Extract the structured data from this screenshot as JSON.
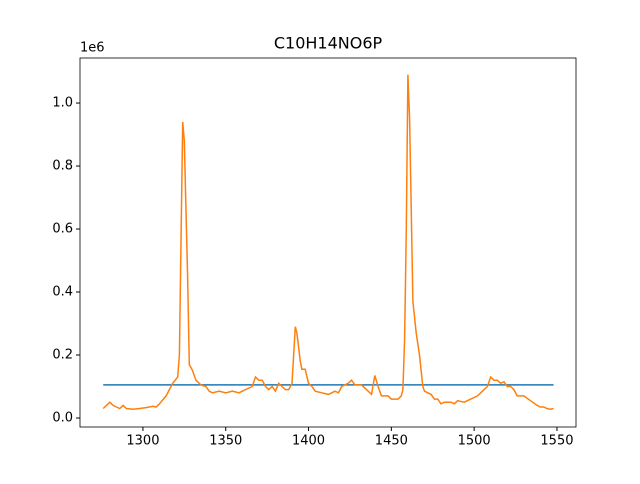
{
  "chart_data": {
    "type": "line",
    "title": "C10H14NO6P",
    "y_offset_label": "1e6",
    "xlim": [
      1262,
      1561.5
    ],
    "ylim": [
      -0.0286,
      1.143
    ],
    "xticks": [
      1300,
      1350,
      1400,
      1450,
      1500,
      1550
    ],
    "yticks": [
      {
        "value": 0,
        "label": "0.0"
      },
      0.2,
      0.4,
      0.6,
      0.8,
      {
        "value": 1,
        "label": "1.0"
      }
    ],
    "series": [
      {
        "color": "#1f77b4",
        "x": [
          1276,
          1548
        ],
        "values": [
          0.105,
          0.105
        ]
      },
      {
        "color": "#ff7f0e",
        "x": [
          1276,
          1278,
          1280,
          1282,
          1284,
          1286,
          1288,
          1290,
          1294,
          1298,
          1302,
          1306,
          1308,
          1310,
          1314,
          1318,
          1321,
          1322,
          1324,
          1325,
          1327,
          1328,
          1330,
          1332,
          1335,
          1338,
          1340,
          1342,
          1346,
          1350,
          1354,
          1358,
          1362,
          1366,
          1368,
          1370,
          1372,
          1374,
          1376,
          1378,
          1380,
          1382,
          1384,
          1386,
          1388,
          1390,
          1392,
          1393,
          1395,
          1396,
          1398,
          1400,
          1402,
          1404,
          1408,
          1412,
          1416,
          1418,
          1420,
          1424,
          1426,
          1428,
          1432,
          1436,
          1438,
          1440,
          1442,
          1444,
          1448,
          1450,
          1454,
          1456,
          1457,
          1458,
          1459,
          1460,
          1461,
          1463,
          1465,
          1467,
          1469,
          1470,
          1474,
          1476,
          1478,
          1480,
          1482,
          1486,
          1488,
          1490,
          1494,
          1498,
          1502,
          1506,
          1508,
          1510,
          1512,
          1514,
          1516,
          1518,
          1520,
          1522,
          1524,
          1526,
          1530,
          1534,
          1538,
          1540,
          1542,
          1544,
          1546,
          1548
        ],
        "values": [
          0.03,
          0.04,
          0.05,
          0.04,
          0.035,
          0.03,
          0.04,
          0.03,
          0.028,
          0.03,
          0.033,
          0.037,
          0.035,
          0.045,
          0.07,
          0.11,
          0.13,
          0.2,
          0.94,
          0.88,
          0.45,
          0.17,
          0.15,
          0.12,
          0.105,
          0.1,
          0.085,
          0.08,
          0.085,
          0.08,
          0.085,
          0.08,
          0.09,
          0.1,
          0.13,
          0.12,
          0.12,
          0.1,
          0.09,
          0.1,
          0.085,
          0.11,
          0.1,
          0.09,
          0.09,
          0.11,
          0.29,
          0.27,
          0.18,
          0.155,
          0.155,
          0.11,
          0.1,
          0.085,
          0.08,
          0.075,
          0.085,
          0.08,
          0.1,
          0.11,
          0.12,
          0.105,
          0.105,
          0.085,
          0.075,
          0.135,
          0.1,
          0.07,
          0.07,
          0.06,
          0.06,
          0.07,
          0.09,
          0.25,
          0.6,
          1.09,
          0.95,
          0.37,
          0.27,
          0.2,
          0.1,
          0.085,
          0.075,
          0.06,
          0.06,
          0.045,
          0.05,
          0.05,
          0.045,
          0.055,
          0.05,
          0.06,
          0.07,
          0.09,
          0.1,
          0.13,
          0.12,
          0.12,
          0.11,
          0.115,
          0.1,
          0.1,
          0.09,
          0.07,
          0.07,
          0.055,
          0.04,
          0.035,
          0.035,
          0.03,
          0.028,
          0.03
        ]
      }
    ]
  }
}
